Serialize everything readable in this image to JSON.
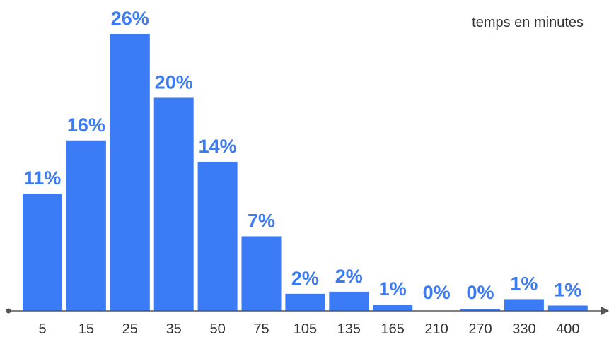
{
  "chart_data": {
    "type": "bar",
    "categories": [
      "5",
      "15",
      "25",
      "35",
      "50",
      "75",
      "105",
      "135",
      "165",
      "210",
      "270",
      "330",
      "400"
    ],
    "values": [
      11,
      16,
      26,
      20,
      14,
      7,
      2,
      2,
      1,
      0,
      0,
      1,
      1
    ],
    "value_labels": [
      "11%",
      "16%",
      "26%",
      "20%",
      "14%",
      "7%",
      "2%",
      "2%",
      "1%",
      "0%",
      "0%",
      "1%",
      "1%"
    ],
    "bar_heights_pct": [
      11,
      16,
      26,
      20,
      14,
      7,
      1.6,
      1.8,
      0.6,
      0,
      0.2,
      1.1,
      0.5
    ],
    "unit_label": "temps en minutes",
    "bar_color": "#3b7bf6",
    "grid": false,
    "ylim": [
      0,
      26
    ]
  }
}
